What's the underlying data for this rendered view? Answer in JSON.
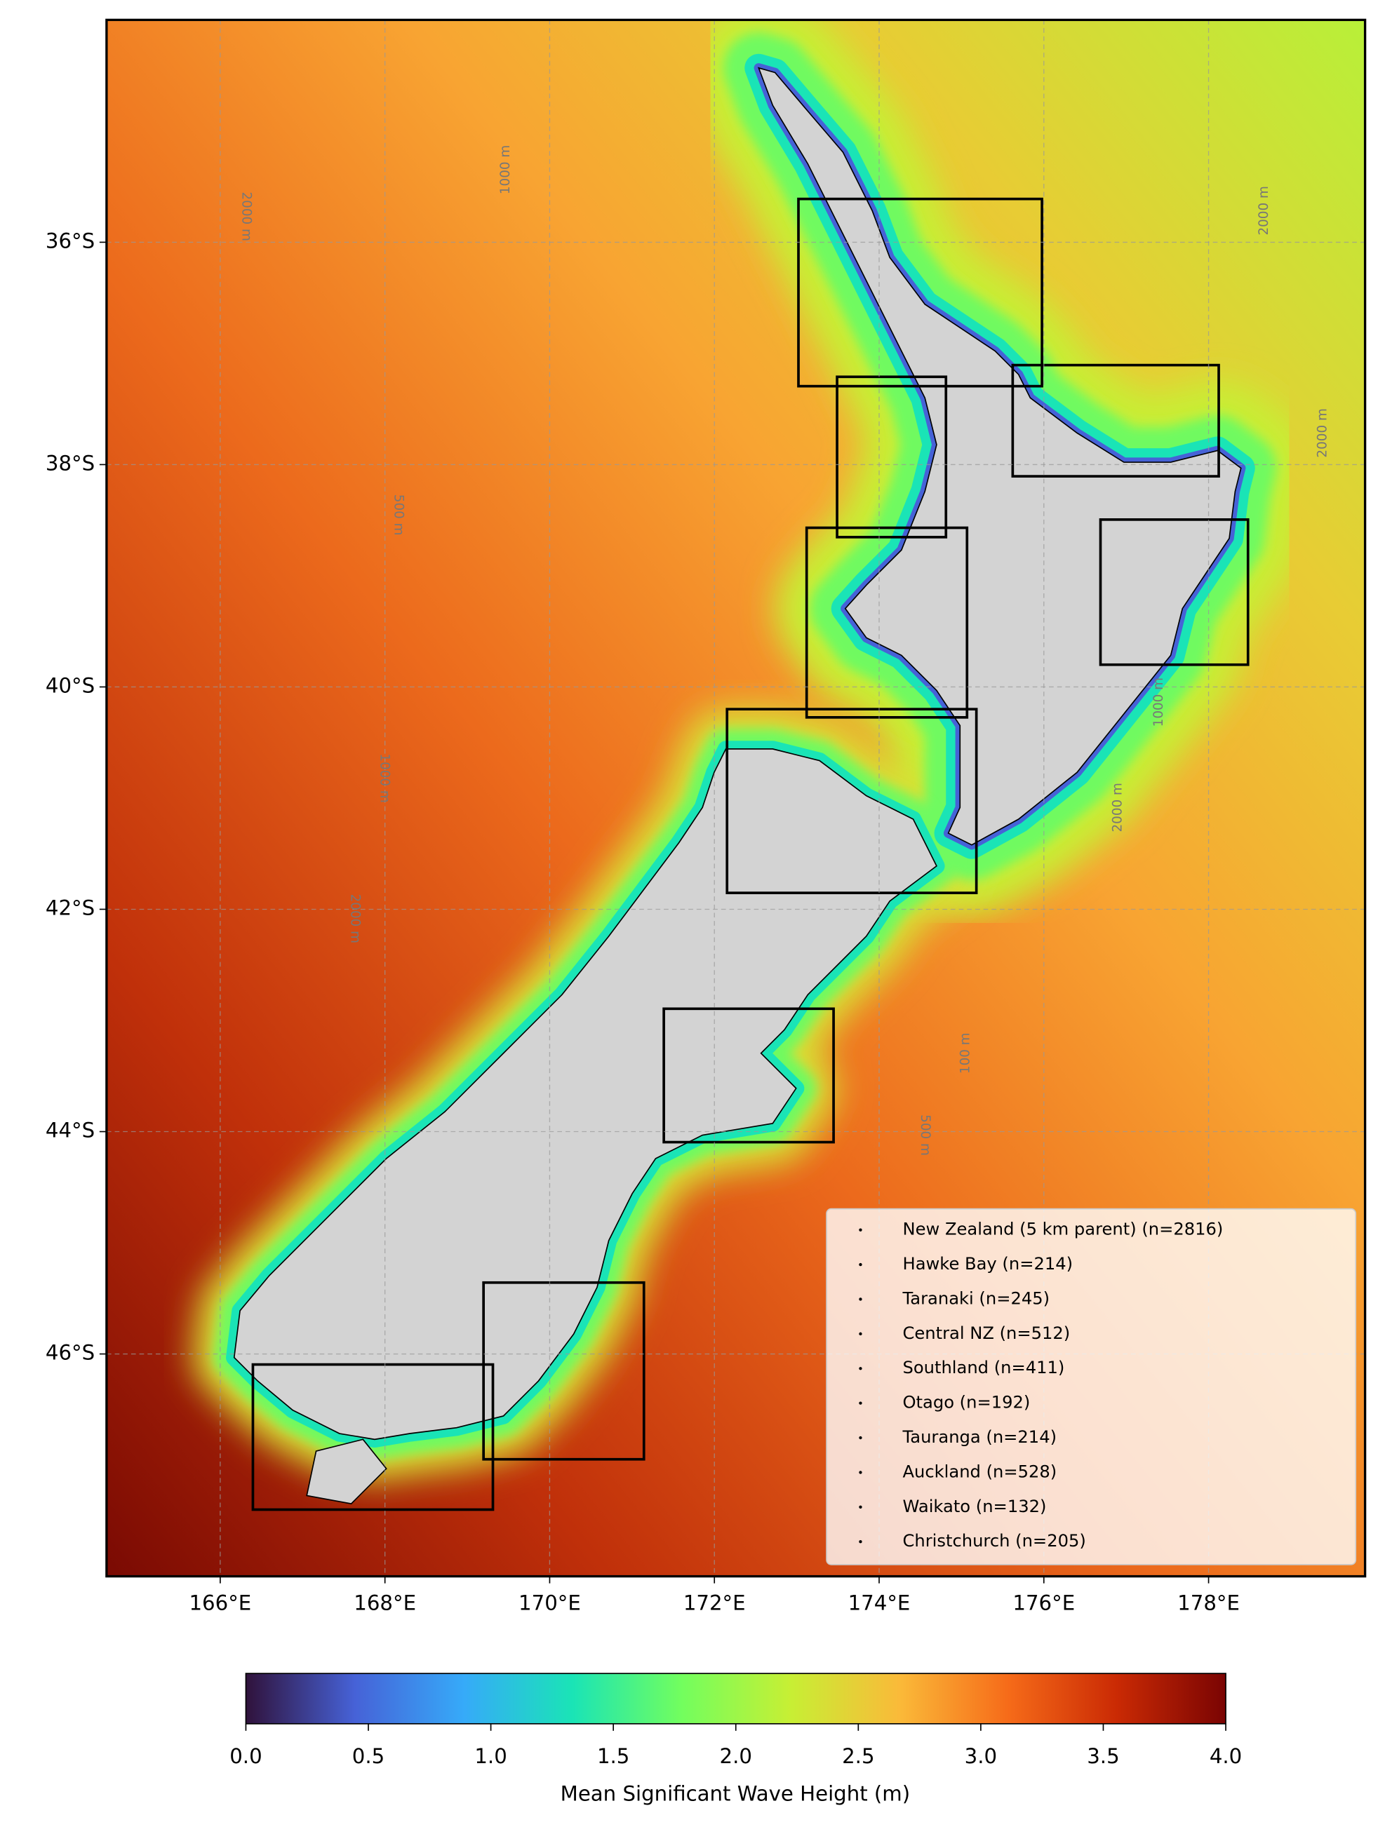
{
  "chart_data": {
    "type": "map",
    "xlim": [
      164.62,
      179.9
    ],
    "ylim": [
      -48,
      -34
    ],
    "xticks": [
      {
        "value": 166,
        "label": "166°E"
      },
      {
        "value": 168,
        "label": "168°E"
      },
      {
        "value": 170,
        "label": "170°E"
      },
      {
        "value": 172,
        "label": "172°E"
      },
      {
        "value": 174,
        "label": "174°E"
      },
      {
        "value": 176,
        "label": "176°E"
      },
      {
        "value": 178,
        "label": "178°E"
      }
    ],
    "yticks": [
      {
        "value": -36,
        "label": "36°S"
      },
      {
        "value": -38,
        "label": "38°S"
      },
      {
        "value": -40,
        "label": "40°S"
      },
      {
        "value": -42,
        "label": "42°S"
      },
      {
        "value": -44,
        "label": "44°S"
      },
      {
        "value": -46,
        "label": "46°S"
      }
    ],
    "grid": true,
    "legend": [
      "New Zealand (5 km parent) (n=2816)",
      "Hawke Bay (n=214)",
      "Taranaki (n=245)",
      "Central NZ (n=512)",
      "Southland (n=411)",
      "Otago (n=192)",
      "Tauranga (n=214)",
      "Auckland (n=528)",
      "Waikato (n=132)",
      "Christchurch (n=205)"
    ],
    "legend_position": "lower right",
    "contour_labels": [
      "2000 m",
      "1000 m",
      "500 m",
      "1000 m",
      "2000 m",
      "100 m",
      "500 m",
      "2000 m",
      "2000 m",
      "1000 m",
      "2000 m"
    ],
    "colorbar": {
      "label": "Mean Significant Wave Height (m)",
      "lim": [
        0,
        4
      ],
      "ticks": [
        {
          "value": 0,
          "label": "0.0"
        },
        0.5,
        {
          "value": 1,
          "label": "1.0"
        },
        1.5,
        {
          "value": 2,
          "label": "2.0"
        },
        2.5,
        {
          "value": 3,
          "label": "3.0"
        },
        3.5,
        {
          "value": 4,
          "label": "4.0"
        }
      ],
      "colors": [
        "#30123b",
        "#4662d7",
        "#36aaf9",
        "#1ae4b6",
        "#72fe5e",
        "#c7ef34",
        "#faba39",
        "#f66b19",
        "#ca2a04",
        "#7a0403"
      ]
    }
  }
}
